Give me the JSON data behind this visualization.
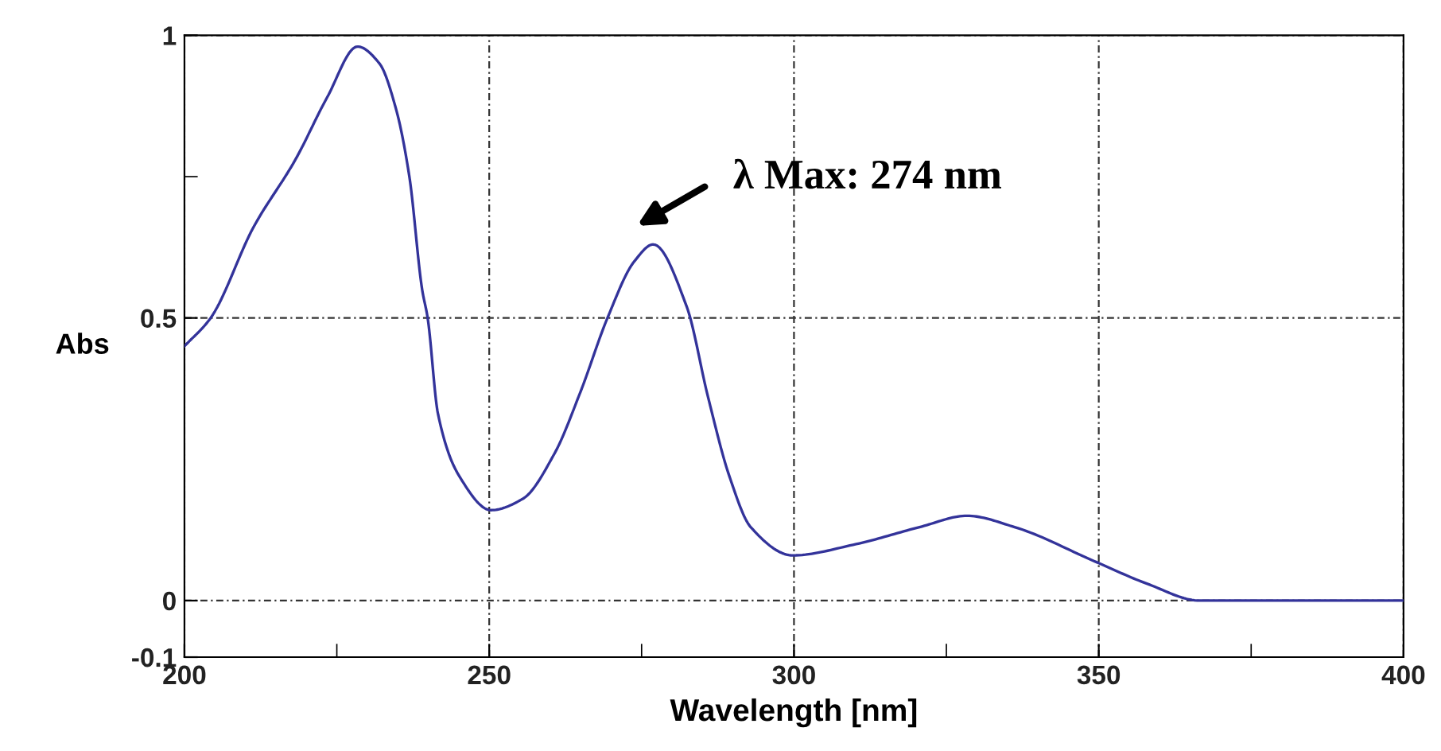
{
  "chart_data": {
    "type": "line",
    "xlabel": "Wavelength [nm]",
    "ylabel": "Abs",
    "x": [
      200,
      204.3,
      211.3,
      218.2,
      223.4,
      228.4,
      232,
      234.7,
      236.9,
      239,
      239.9,
      241.6,
      245.1,
      250.3,
      255.5,
      260.7,
      265,
      269.4,
      273.8,
      276.9,
      282.4,
      285.9,
      289.4,
      292.9,
      299.8,
      310.2,
      320.6,
      328.4,
      336.2,
      349.2,
      357.9,
      366.6,
      370.9,
      380,
      390,
      400
    ],
    "series": [
      {
        "color": "#33339a",
        "values": [
          0.45,
          0.5,
          0.66,
          0.78,
          0.89,
          0.98,
          0.95,
          0.87,
          0.75,
          0.55,
          0.5,
          0.33,
          0.22,
          0.16,
          0.18,
          0.26,
          0.37,
          0.5,
          0.6,
          0.63,
          0.52,
          0.36,
          0.22,
          0.13,
          0.08,
          0.1,
          0.13,
          0.15,
          0.13,
          0.07,
          0.03,
          0.0,
          0.0,
          0.0,
          0.0,
          0.0
        ]
      }
    ],
    "annotations": [
      "λ Max: 274 nm"
    ],
    "xlim": [
      200,
      400
    ],
    "ylim": [
      -0.1,
      1
    ],
    "xticks": [
      200,
      {
        "value": 225,
        "label": null
      },
      250,
      {
        "value": 275,
        "label": null
      },
      300,
      {
        "value": 325,
        "label": null
      },
      350,
      {
        "value": 375,
        "label": null
      },
      400
    ],
    "yticks": [
      -0.1,
      0,
      0.5,
      {
        "value": 0.75,
        "label": null
      },
      1
    ],
    "grid": true,
    "line_style": "solid",
    "marker": "none"
  }
}
